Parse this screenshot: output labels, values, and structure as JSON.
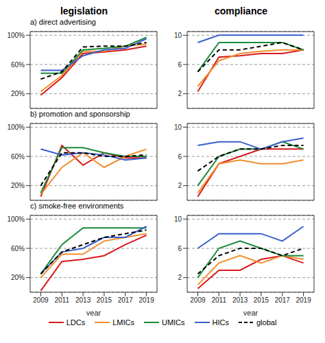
{
  "header": [
    "legislation",
    "compliance"
  ],
  "legend": "bottom",
  "chart_data": [
    {
      "type": "line",
      "title": "a) direct advertising",
      "x": [
        2009,
        2011,
        2013,
        2015,
        2017,
        2019
      ],
      "xlim": [
        2008,
        2020
      ],
      "xticks": [
        2009,
        2011,
        2013,
        2015,
        2017,
        2019
      ],
      "ylim": [
        0,
        105
      ],
      "yticks": [
        {
          "value": 20,
          "label": "20%"
        },
        {
          "value": 60,
          "label": "60%"
        },
        {
          "value": 100,
          "label": "100%"
        }
      ],
      "grid": true,
      "tick_labels": "y",
      "series": [
        {
          "name": "LDCs",
          "color": "#d7191c",
          "line_style": "solid",
          "values": [
            18,
            42,
            75,
            77,
            80,
            85
          ]
        },
        {
          "name": "LMICs",
          "color": "#f28e2b",
          "line_style": "solid",
          "values": [
            23,
            45,
            78,
            78,
            85,
            88
          ]
        },
        {
          "name": "UMICs",
          "color": "#1b8a3a",
          "line_style": "solid",
          "values": [
            48,
            48,
            80,
            82,
            85,
            97
          ]
        },
        {
          "name": "HICs",
          "color": "#3a5fcd",
          "line_style": "solid",
          "values": [
            52,
            52,
            72,
            80,
            82,
            95
          ]
        },
        {
          "name": "global",
          "color": "#000000",
          "line_style": "dashed",
          "values": [
            40,
            50,
            84,
            85,
            85,
            90
          ]
        }
      ]
    },
    {
      "type": "line",
      "x": [
        2009,
        2011,
        2013,
        2015,
        2017,
        2019
      ],
      "xlim": [
        2008,
        2020
      ],
      "xticks": [
        2009,
        2011,
        2013,
        2015,
        2017,
        2019
      ],
      "ylim": [
        0,
        10.5
      ],
      "yticks": [
        2,
        6,
        10
      ],
      "grid": true,
      "tick_labels": "y",
      "series": [
        {
          "name": "LDCs",
          "color": "#d7191c",
          "line_style": "solid",
          "values": [
            2.3,
            7,
            7.2,
            7.5,
            7.5,
            8
          ]
        },
        {
          "name": "LMICs",
          "color": "#f28e2b",
          "line_style": "solid",
          "values": [
            3,
            6.5,
            7.5,
            7.8,
            8,
            8
          ]
        },
        {
          "name": "UMICs",
          "color": "#1b8a3a",
          "line_style": "solid",
          "values": [
            5,
            9,
            9,
            9,
            9,
            8
          ]
        },
        {
          "name": "HICs",
          "color": "#3a5fcd",
          "line_style": "solid",
          "values": [
            9,
            10,
            10,
            10,
            10,
            10
          ]
        },
        {
          "name": "global",
          "color": "#000000",
          "line_style": "dashed",
          "values": [
            5,
            8,
            8,
            8.5,
            9,
            8
          ]
        }
      ]
    },
    {
      "type": "line",
      "title": "b) promotion and sponsorship",
      "x": [
        2009,
        2011,
        2013,
        2015,
        2017,
        2019
      ],
      "xlim": [
        2008,
        2020
      ],
      "xticks": [
        2009,
        2011,
        2013,
        2015,
        2017,
        2019
      ],
      "ylim": [
        0,
        105
      ],
      "yticks": [
        {
          "value": 20,
          "label": "20%"
        },
        {
          "value": 60,
          "label": "60%"
        },
        {
          "value": 100,
          "label": "100%"
        }
      ],
      "grid": true,
      "tick_labels": "y",
      "series": [
        {
          "name": "LDCs",
          "color": "#d7191c",
          "line_style": "solid",
          "values": [
            5,
            75,
            48,
            65,
            58,
            58
          ]
        },
        {
          "name": "LMICs",
          "color": "#f28e2b",
          "line_style": "solid",
          "values": [
            8,
            45,
            65,
            45,
            60,
            70
          ]
        },
        {
          "name": "UMICs",
          "color": "#1b8a3a",
          "line_style": "solid",
          "values": [
            10,
            72,
            72,
            65,
            60,
            60
          ]
        },
        {
          "name": "HICs",
          "color": "#3a5fcd",
          "line_style": "solid",
          "values": [
            70,
            62,
            65,
            62,
            55,
            58
          ]
        },
        {
          "name": "global",
          "color": "#000000",
          "line_style": "dashed",
          "values": [
            20,
            65,
            65,
            60,
            60,
            62
          ]
        }
      ]
    },
    {
      "type": "line",
      "x": [
        2009,
        2011,
        2013,
        2015,
        2017,
        2019
      ],
      "xlim": [
        2008,
        2020
      ],
      "xticks": [
        2009,
        2011,
        2013,
        2015,
        2017,
        2019
      ],
      "ylim": [
        0,
        10.5
      ],
      "yticks": [
        2,
        6,
        10
      ],
      "grid": true,
      "tick_labels": "y",
      "series": [
        {
          "name": "LDCs",
          "color": "#d7191c",
          "line_style": "solid",
          "values": [
            0.5,
            5,
            6,
            7,
            7,
            7
          ]
        },
        {
          "name": "LMICs",
          "color": "#f28e2b",
          "line_style": "solid",
          "values": [
            1,
            5,
            5.5,
            5,
            5,
            5.5
          ]
        },
        {
          "name": "UMICs",
          "color": "#1b8a3a",
          "line_style": "solid",
          "values": [
            2,
            6,
            7,
            7,
            8,
            7
          ]
        },
        {
          "name": "HICs",
          "color": "#3a5fcd",
          "line_style": "solid",
          "values": [
            7.5,
            8,
            8,
            7,
            8,
            8.5
          ]
        },
        {
          "name": "global",
          "color": "#000000",
          "line_style": "dashed",
          "values": [
            4,
            6,
            7,
            7,
            7.5,
            7.5
          ]
        }
      ]
    },
    {
      "type": "line",
      "title": "c) smoke-free environments",
      "xlabel": "year",
      "x": [
        2009,
        2011,
        2013,
        2015,
        2017,
        2019
      ],
      "xlim": [
        2008,
        2020
      ],
      "xticks": [
        2009,
        2011,
        2013,
        2015,
        2017,
        2019
      ],
      "ylim": [
        0,
        105
      ],
      "yticks": [
        {
          "value": 20,
          "label": "20%"
        },
        {
          "value": 60,
          "label": "60%"
        },
        {
          "value": 100,
          "label": "100%"
        }
      ],
      "grid": true,
      "series": [
        {
          "name": "LDCs",
          "color": "#d7191c",
          "line_style": "solid",
          "values": [
            2,
            42,
            45,
            50,
            65,
            78
          ]
        },
        {
          "name": "LMICs",
          "color": "#f28e2b",
          "line_style": "solid",
          "values": [
            20,
            52,
            52,
            70,
            75,
            80
          ]
        },
        {
          "name": "UMICs",
          "color": "#1b8a3a",
          "line_style": "solid",
          "values": [
            25,
            65,
            88,
            88,
            88,
            88
          ]
        },
        {
          "name": "HICs",
          "color": "#3a5fcd",
          "line_style": "solid",
          "values": [
            25,
            55,
            60,
            75,
            75,
            90
          ]
        },
        {
          "name": "global",
          "color": "#000000",
          "line_style": "dashed",
          "values": [
            25,
            55,
            65,
            75,
            80,
            85
          ]
        }
      ]
    },
    {
      "type": "line",
      "xlabel": "year",
      "x": [
        2009,
        2011,
        2013,
        2015,
        2017,
        2019
      ],
      "xlim": [
        2008,
        2020
      ],
      "xticks": [
        2009,
        2011,
        2013,
        2015,
        2017,
        2019
      ],
      "ylim": [
        0,
        10.5
      ],
      "yticks": [
        2,
        6,
        10
      ],
      "grid": true,
      "series": [
        {
          "name": "LDCs",
          "color": "#d7191c",
          "line_style": "solid",
          "values": [
            0.5,
            3,
            3,
            4.5,
            5,
            4
          ]
        },
        {
          "name": "LMICs",
          "color": "#f28e2b",
          "line_style": "solid",
          "values": [
            1,
            4,
            5,
            4,
            5,
            4.5
          ]
        },
        {
          "name": "UMICs",
          "color": "#1b8a3a",
          "line_style": "solid",
          "values": [
            2,
            6,
            7,
            6,
            5,
            5
          ]
        },
        {
          "name": "HICs",
          "color": "#3a5fcd",
          "line_style": "solid",
          "values": [
            6,
            8,
            8,
            8,
            7,
            9
          ]
        },
        {
          "name": "global",
          "color": "#000000",
          "line_style": "dashed",
          "values": [
            2.5,
            5,
            6,
            6,
            5,
            6
          ]
        }
      ]
    }
  ]
}
